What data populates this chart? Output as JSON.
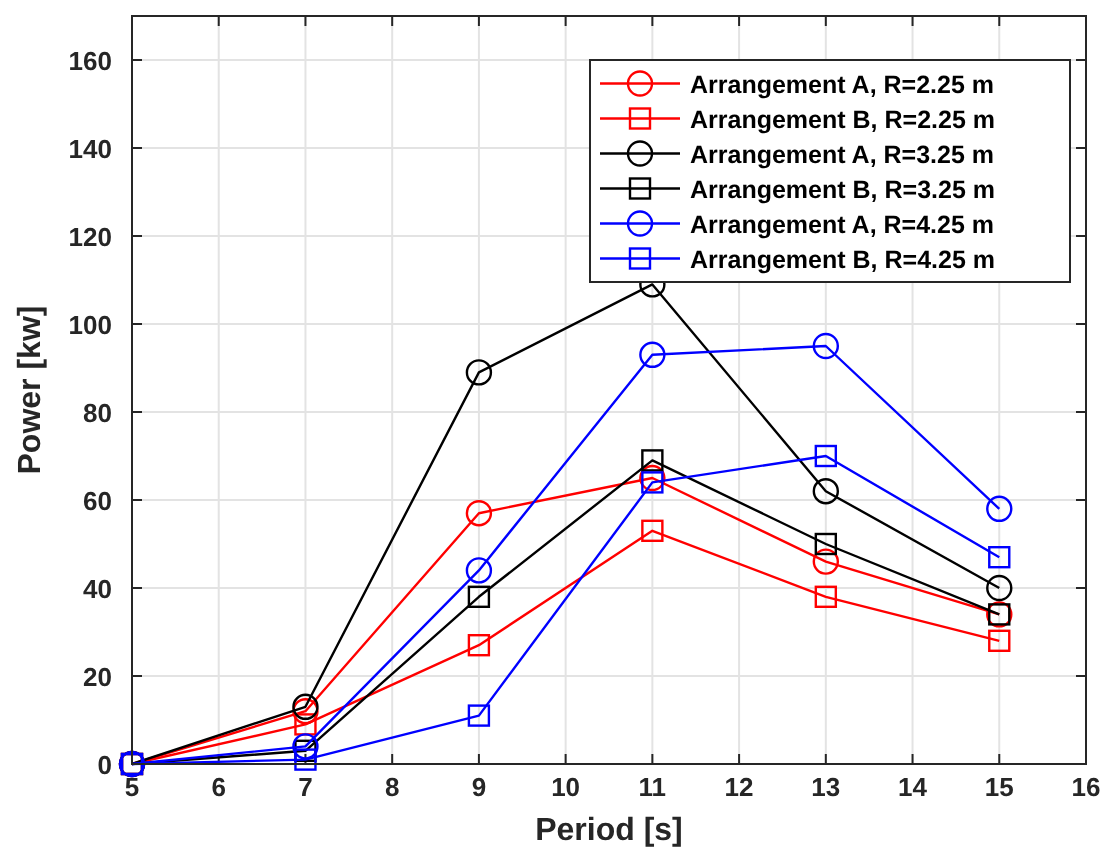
{
  "chart_data": {
    "type": "line",
    "xlabel": "Period [s]",
    "ylabel": "Power [kw]",
    "x": [
      5,
      7,
      9,
      11,
      13,
      15
    ],
    "xlim": [
      5,
      16
    ],
    "xticks": [
      5,
      6,
      7,
      8,
      9,
      10,
      11,
      12,
      13,
      14,
      15,
      16
    ],
    "ylim": [
      0,
      170
    ],
    "yticks": [
      0,
      20,
      40,
      60,
      80,
      100,
      120,
      140,
      160
    ],
    "grid": true,
    "legend": "top right",
    "line_style": "solid",
    "series": [
      {
        "name": "Arrangement A, R=2.25 m",
        "color": "#ff0000",
        "marker": "circle",
        "values": [
          0,
          12,
          57,
          65,
          46,
          34
        ]
      },
      {
        "name": "Arrangement B, R=2.25 m",
        "color": "#ff0000",
        "marker": "square",
        "values": [
          0,
          9,
          27,
          53,
          38,
          28
        ]
      },
      {
        "name": "Arrangement A, R=3.25 m",
        "color": "#000000",
        "marker": "circle",
        "values": [
          0,
          13,
          89,
          109,
          62,
          40
        ]
      },
      {
        "name": "Arrangement B, R=3.25 m",
        "color": "#000000",
        "marker": "square",
        "values": [
          0,
          3,
          38,
          69,
          50,
          34
        ]
      },
      {
        "name": "Arrangement A, R=4.25 m",
        "color": "#0000ff",
        "marker": "circle",
        "values": [
          0,
          4,
          44,
          93,
          95,
          58
        ]
      },
      {
        "name": "Arrangement B, R=4.25 m",
        "color": "#0000ff",
        "marker": "square",
        "values": [
          0,
          1,
          11,
          64,
          70,
          47
        ]
      }
    ]
  }
}
